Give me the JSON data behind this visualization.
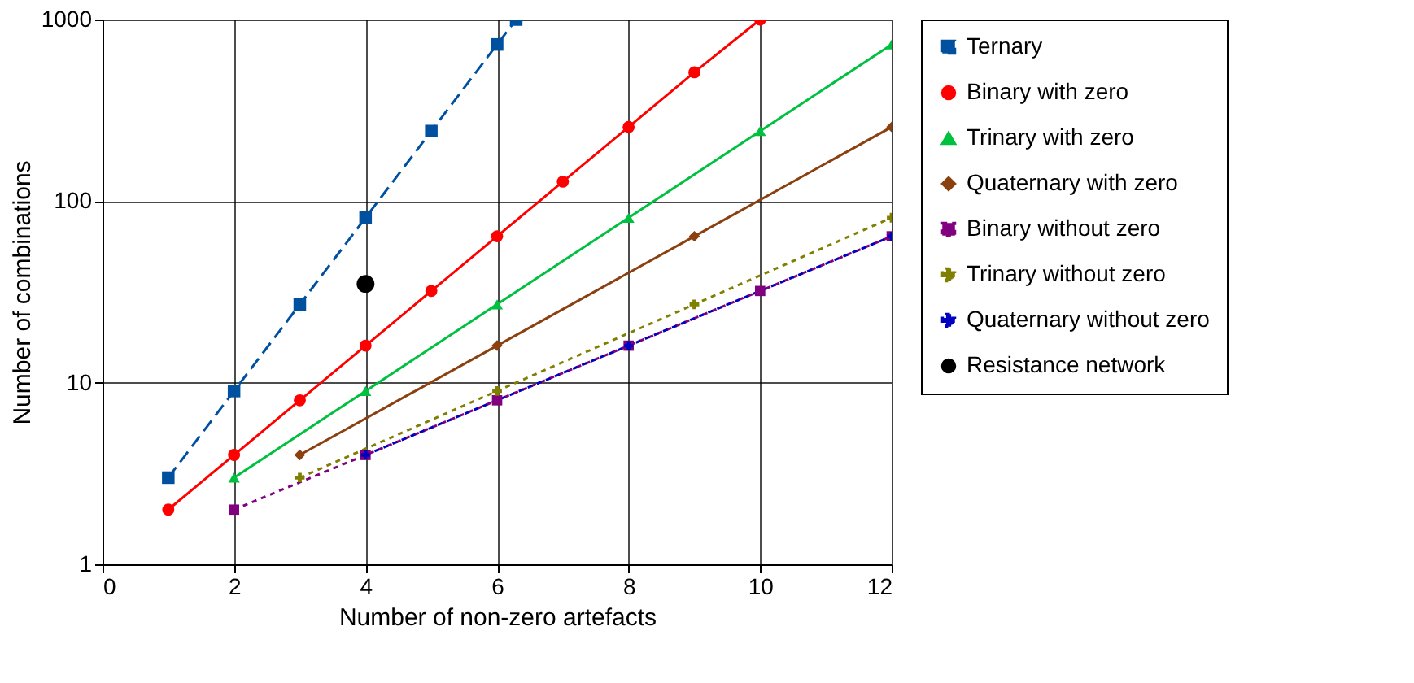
{
  "chart_data": {
    "type": "line",
    "xlabel": "Number of non-zero artefacts",
    "ylabel": "Number of combinations",
    "log": "y",
    "grid": true,
    "legend": "right",
    "xlim": [
      0,
      12
    ],
    "xticks": [
      0,
      2,
      4,
      6,
      8,
      10,
      12
    ],
    "ylim": [
      1,
      1000
    ],
    "yticks": [
      1,
      10,
      100,
      1000
    ],
    "series": [
      {
        "name": "Ternary",
        "color": "#0050a0",
        "marker": "square",
        "line_style": "dashed",
        "x": [
          1,
          2,
          3,
          4,
          5,
          6,
          6.29
        ],
        "values": [
          3,
          9,
          27,
          81,
          243,
          729,
          1000
        ]
      },
      {
        "name": "Binary with zero",
        "color": "#ff0000",
        "marker": "circle",
        "line_style": "solid",
        "x": [
          1,
          2,
          3,
          4,
          5,
          6,
          7,
          8,
          9,
          10
        ],
        "values": [
          2,
          4,
          8,
          16,
          32,
          64,
          128,
          256,
          512,
          1000
        ]
      },
      {
        "name": "Trinary with zero",
        "color": "#00c040",
        "marker": "triangle",
        "line_style": "solid",
        "x": [
          2,
          4,
          6,
          8,
          10,
          12
        ],
        "values": [
          3,
          9,
          27,
          81,
          243,
          729
        ]
      },
      {
        "name": "Quaternary with zero",
        "color": "#8b4010",
        "marker": "diamond",
        "line_style": "solid",
        "x": [
          3,
          6,
          9,
          12
        ],
        "values": [
          4,
          16,
          64,
          256
        ]
      },
      {
        "name": "Binary without zero",
        "color": "#800080",
        "marker": "square",
        "line_style": "dotted",
        "x": [
          2,
          4,
          6,
          8,
          10,
          12
        ],
        "values": [
          2,
          4,
          8,
          16,
          32,
          64
        ]
      },
      {
        "name": "Trinary without zero",
        "color": "#808000",
        "marker": "cross",
        "line_style": "dotted",
        "x": [
          3,
          6,
          9,
          12
        ],
        "values": [
          3,
          9,
          27,
          81
        ]
      },
      {
        "name": "Quaternary without zero",
        "color": "#0000c0",
        "marker": "cross",
        "line_style": "dotted",
        "x": [
          4,
          8,
          12
        ],
        "values": [
          4,
          16,
          64
        ]
      },
      {
        "name": "Resistance network",
        "type": "scatter",
        "color": "#000000",
        "marker": "circle",
        "x": [
          4
        ],
        "values": [
          35
        ]
      }
    ]
  }
}
